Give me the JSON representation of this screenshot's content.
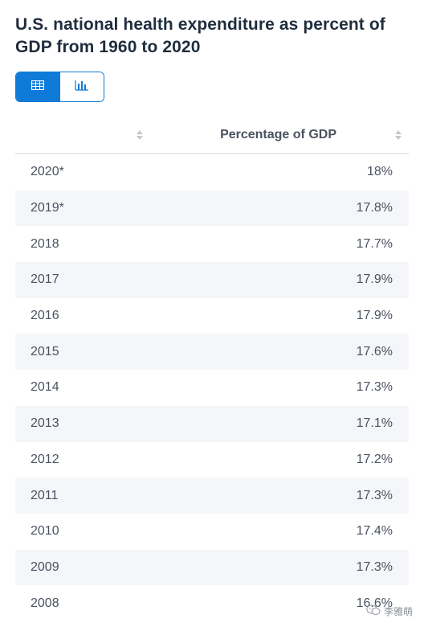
{
  "title": "U.S. national health expenditure as percent of GDP from 1960 to 2020",
  "toggle": {
    "table_icon": "table-icon",
    "chart_icon": "bar-chart-icon",
    "active": "table",
    "accent": "#0f7ad8"
  },
  "table": {
    "columns": [
      "",
      "Percentage of GDP"
    ],
    "rows": [
      {
        "year": "2020*",
        "value": "18%"
      },
      {
        "year": "2019*",
        "value": "17.8%"
      },
      {
        "year": "2018",
        "value": "17.7%"
      },
      {
        "year": "2017",
        "value": "17.9%"
      },
      {
        "year": "2016",
        "value": "17.9%"
      },
      {
        "year": "2015",
        "value": "17.6%"
      },
      {
        "year": "2014",
        "value": "17.3%"
      },
      {
        "year": "2013",
        "value": "17.1%"
      },
      {
        "year": "2012",
        "value": "17.2%"
      },
      {
        "year": "2011",
        "value": "17.3%"
      },
      {
        "year": "2010",
        "value": "17.4%"
      },
      {
        "year": "2009",
        "value": "17.3%"
      },
      {
        "year": "2008",
        "value": "16.6%"
      }
    ]
  },
  "watermark": {
    "text": "李雅萌",
    "icon": "wechat-icon"
  }
}
